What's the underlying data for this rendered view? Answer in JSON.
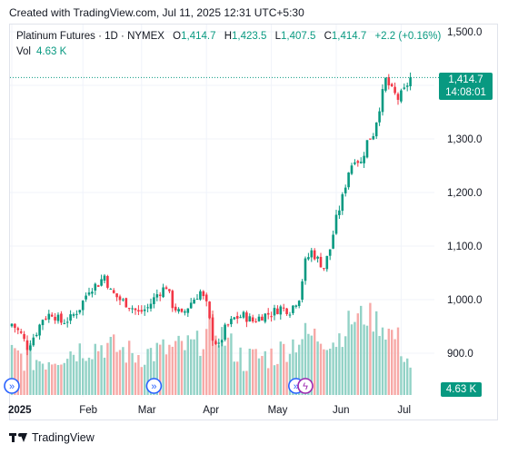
{
  "caption": "Created with TradingView.com, Jul 11, 2025 12:31 UTC+5:30",
  "legend": {
    "symbol": "Platinum Futures · 1D · NYMEX",
    "o_label": "O",
    "o": "1,414.7",
    "h_label": "H",
    "h": "1,423.5",
    "l_label": "L",
    "l": "1,407.5",
    "c_label": "C",
    "c": "1,414.7",
    "change": "+2.2 (+0.16%)",
    "vol_label": "Vol",
    "vol": "4.63 K"
  },
  "price_tag": {
    "price": "1,414.7",
    "countdown": "14:08:01"
  },
  "vol_tag": "4.63 K",
  "footer": {
    "brand": "TradingView"
  },
  "colors": {
    "up": "#089981",
    "down": "#f23645",
    "vol_up": "#92d2c6",
    "vol_down": "#f7a9a7",
    "event": "#2962ff",
    "dividend": "#9c27b0"
  },
  "chart_data": {
    "type": "candlestick",
    "title": "Platinum Futures · 1D · NYMEX",
    "y_ticks": [
      "1,500.0",
      "1,400.0",
      "1,300.0",
      "1,200.0",
      "1,100.0",
      "1,000.0",
      "900.0"
    ],
    "y_tick_values": [
      1500,
      1400,
      1300,
      1200,
      1100,
      1000,
      900
    ],
    "x_ticks": [
      "2025",
      "Feb",
      "Mar",
      "Apr",
      "May",
      "Jun",
      "Jul"
    ],
    "x_tick_index": [
      0,
      23,
      42,
      63,
      84,
      105,
      126
    ],
    "ylim": [
      855,
      1510
    ],
    "grid": true,
    "last_price": 1414.7,
    "close_path": [
      [
        0,
        955
      ],
      [
        3,
        935
      ],
      [
        5,
        912
      ],
      [
        8,
        940
      ],
      [
        10,
        965
      ],
      [
        13,
        975
      ],
      [
        16,
        958
      ],
      [
        19,
        965
      ],
      [
        22,
        985
      ],
      [
        25,
        1020
      ],
      [
        28,
        1030
      ],
      [
        30,
        1045
      ],
      [
        32,
        1015
      ],
      [
        35,
        1000
      ],
      [
        38,
        990
      ],
      [
        41,
        975
      ],
      [
        44,
        985
      ],
      [
        47,
        1010
      ],
      [
        50,
        1025
      ],
      [
        52,
        990
      ],
      [
        55,
        970
      ],
      [
        58,
        995
      ],
      [
        61,
        1015
      ],
      [
        63,
        990
      ],
      [
        65,
        930
      ],
      [
        67,
        912
      ],
      [
        69,
        945
      ],
      [
        72,
        965
      ],
      [
        75,
        970
      ],
      [
        78,
        960
      ],
      [
        81,
        970
      ],
      [
        84,
        975
      ],
      [
        87,
        985
      ],
      [
        90,
        980
      ],
      [
        93,
        1005
      ],
      [
        95,
        1070
      ],
      [
        97,
        1090
      ],
      [
        99,
        1075
      ],
      [
        101,
        1060
      ],
      [
        103,
        1095
      ],
      [
        105,
        1150
      ],
      [
        107,
        1190
      ],
      [
        109,
        1240
      ],
      [
        111,
        1265
      ],
      [
        113,
        1255
      ],
      [
        115,
        1295
      ],
      [
        117,
        1310
      ],
      [
        119,
        1360
      ],
      [
        121,
        1410
      ],
      [
        123,
        1390
      ],
      [
        125,
        1375
      ],
      [
        127,
        1390
      ],
      [
        129,
        1414.7
      ]
    ],
    "volume_path": [
      [
        0,
        0.4
      ],
      [
        10,
        0.35
      ],
      [
        20,
        0.45
      ],
      [
        30,
        0.5
      ],
      [
        40,
        0.4
      ],
      [
        50,
        0.45
      ],
      [
        60,
        0.5
      ],
      [
        65,
        0.7
      ],
      [
        75,
        0.35
      ],
      [
        85,
        0.4
      ],
      [
        95,
        0.6
      ],
      [
        105,
        0.55
      ],
      [
        110,
        0.75
      ],
      [
        115,
        0.8
      ],
      [
        120,
        0.7
      ],
      [
        125,
        0.55
      ],
      [
        129,
        0.3
      ]
    ],
    "event_markers": [
      0,
      46,
      92
    ],
    "dividend_marker": 95
  }
}
